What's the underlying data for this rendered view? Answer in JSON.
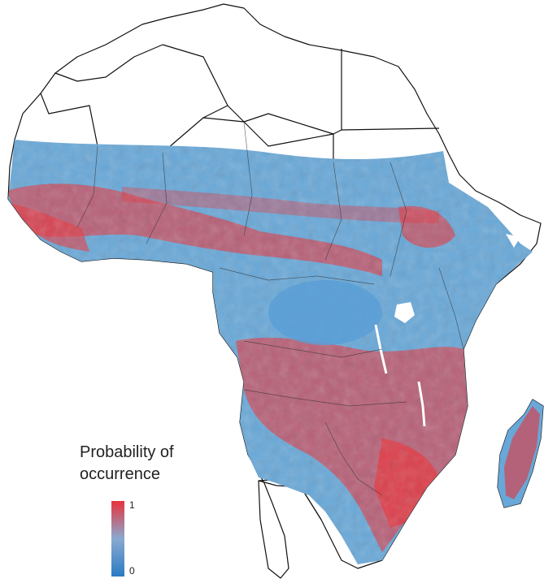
{
  "legend": {
    "title_line1": "Probability of",
    "title_line2": "occurrence",
    "max_label": "1",
    "min_label": "0"
  },
  "colors": {
    "background": "#ffffff",
    "low_probability": "#2b7bc4",
    "mid_probability": "#8aa9d0",
    "high_probability": "#e8333b",
    "country_border": "#111111",
    "no_data_fill": "#ffffff",
    "suitable_range_base": "#68a8d8"
  },
  "map": {
    "region": "Africa",
    "layers": [
      "country-borders",
      "probability-surface",
      "high-probability-belts"
    ]
  }
}
